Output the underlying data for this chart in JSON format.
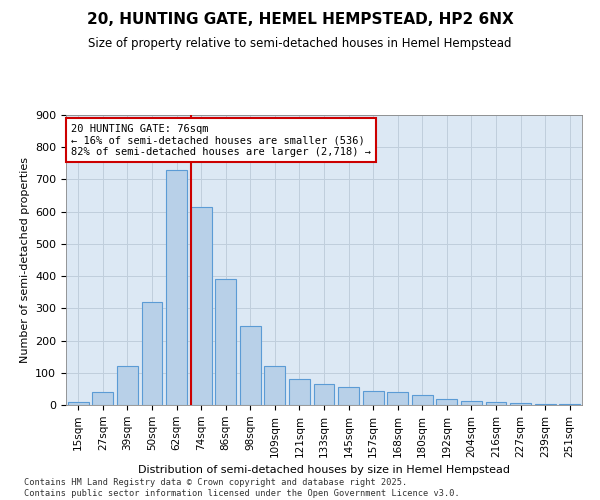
{
  "title": "20, HUNTING GATE, HEMEL HEMPSTEAD, HP2 6NX",
  "subtitle": "Size of property relative to semi-detached houses in Hemel Hempstead",
  "xlabel": "Distribution of semi-detached houses by size in Hemel Hempstead",
  "ylabel": "Number of semi-detached properties",
  "footer": "Contains HM Land Registry data © Crown copyright and database right 2025.\nContains public sector information licensed under the Open Government Licence v3.0.",
  "bar_color": "#b8d0e8",
  "bar_edge_color": "#5b9bd5",
  "grid_color": "#c0cedc",
  "background_color": "#dce8f4",
  "categories": [
    "15sqm",
    "27sqm",
    "39sqm",
    "50sqm",
    "62sqm",
    "74sqm",
    "86sqm",
    "98sqm",
    "109sqm",
    "121sqm",
    "133sqm",
    "145sqm",
    "157sqm",
    "168sqm",
    "180sqm",
    "192sqm",
    "204sqm",
    "216sqm",
    "227sqm",
    "239sqm",
    "251sqm"
  ],
  "values": [
    8,
    40,
    120,
    320,
    730,
    615,
    390,
    245,
    120,
    80,
    65,
    55,
    45,
    40,
    30,
    20,
    12,
    10,
    5,
    3,
    2
  ],
  "ylim": [
    0,
    900
  ],
  "yticks": [
    0,
    100,
    200,
    300,
    400,
    500,
    600,
    700,
    800,
    900
  ],
  "annotation_title": "20 HUNTING GATE: 76sqm",
  "annotation_line1": "← 16% of semi-detached houses are smaller (536)",
  "annotation_line2": "82% of semi-detached houses are larger (2,718) →",
  "vline_color": "#cc0000",
  "annotation_box_facecolor": "#ffffff",
  "annotation_box_edgecolor": "#cc0000"
}
